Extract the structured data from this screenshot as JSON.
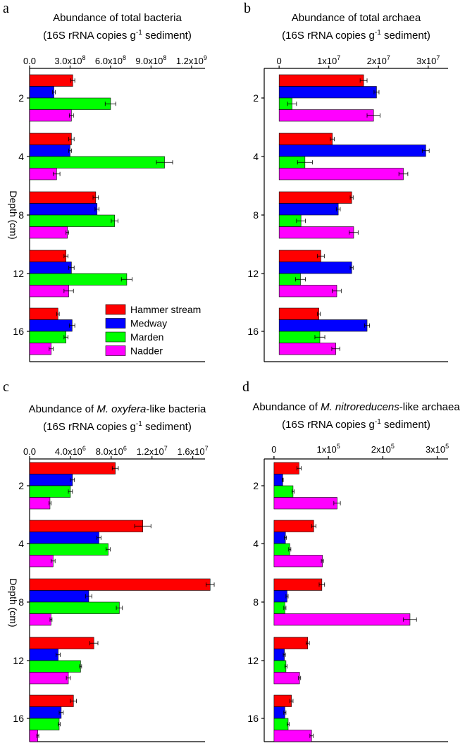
{
  "figure": {
    "depth_label": "Depth (cm)",
    "depths": [
      "2",
      "4",
      "8",
      "12",
      "16"
    ]
  },
  "legend": [
    {
      "label": "Hammer stream",
      "color": "#ff0000"
    },
    {
      "label": "Medway",
      "color": "#0000ff"
    },
    {
      "label": "Marden",
      "color": "#00ff00"
    },
    {
      "label": "Nadder",
      "color": "#ff00ff"
    }
  ],
  "chart_data": [
    {
      "panel": "a",
      "type": "bar",
      "orientation": "horizontal",
      "title_line1": "Abundance of total bacteria",
      "title_line2_pre": "(16S rRNA copies g",
      "title_line2_sup": "-1",
      "title_line2_post": " sediment)",
      "xlim": [
        0,
        1300000000
      ],
      "ticks": [
        {
          "value": 0,
          "mant": "0.0",
          "exp": ""
        },
        {
          "value": 300000000,
          "mant": "3.0x10",
          "exp": "8"
        },
        {
          "value": 600000000,
          "mant": "6.0x10",
          "exp": "8"
        },
        {
          "value": 900000000,
          "mant": "9.0x10",
          "exp": "8"
        },
        {
          "value": 1200000000,
          "mant": "1.2x10",
          "exp": "9"
        }
      ],
      "categories": [
        "2",
        "4",
        "8",
        "12",
        "16"
      ],
      "series": [
        {
          "name": "Hammer stream",
          "values": [
            320000000,
            310000000,
            490000000,
            270000000,
            210000000
          ],
          "errors": [
            15000000,
            20000000,
            20000000,
            15000000,
            10000000
          ]
        },
        {
          "name": "Medway",
          "values": [
            180000000,
            300000000,
            500000000,
            310000000,
            315000000
          ],
          "errors": [
            10000000,
            10000000,
            15000000,
            20000000,
            20000000
          ]
        },
        {
          "name": "Marden",
          "values": [
            600000000,
            1000000000,
            630000000,
            720000000,
            270000000
          ],
          "errors": [
            40000000,
            60000000,
            25000000,
            40000000,
            15000000
          ]
        },
        {
          "name": "Nadder",
          "values": [
            310000000,
            200000000,
            280000000,
            290000000,
            160000000
          ],
          "errors": [
            15000000,
            25000000,
            10000000,
            35000000,
            15000000
          ]
        }
      ]
    },
    {
      "panel": "b",
      "type": "bar",
      "orientation": "horizontal",
      "title_line1": "Abundance of total archaea",
      "title_line2_pre": "(16S rRNA copies g",
      "title_line2_sup": "-1",
      "title_line2_post": " sediment)",
      "xlim": [
        -3000000,
        34000000
      ],
      "ticks": [
        {
          "value": 0,
          "mant": "0",
          "exp": ""
        },
        {
          "value": 10000000,
          "mant": "1x10",
          "exp": "7"
        },
        {
          "value": 20000000,
          "mant": "2x10",
          "exp": "7"
        },
        {
          "value": 30000000,
          "mant": "3x10",
          "exp": "7"
        }
      ],
      "categories": [
        "2",
        "4",
        "8",
        "12",
        "16"
      ],
      "series": [
        {
          "name": "Hammer stream",
          "values": [
            17000000,
            10700000,
            14600000,
            8400000,
            8000000
          ],
          "errors": [
            700000,
            400000,
            300000,
            700000,
            300000
          ]
        },
        {
          "name": "Medway",
          "values": [
            19600000,
            29500000,
            11900000,
            14600000,
            17700000
          ],
          "errors": [
            500000,
            700000,
            400000,
            300000,
            500000
          ]
        },
        {
          "name": "Marden",
          "values": [
            2600000,
            5200000,
            4400000,
            4300000,
            8200000
          ],
          "errors": [
            900000,
            1500000,
            900000,
            1000000,
            1000000
          ]
        },
        {
          "name": "Nadder",
          "values": [
            19000000,
            25000000,
            15000000,
            11600000,
            11400000
          ],
          "errors": [
            1300000,
            900000,
            900000,
            900000,
            800000
          ]
        }
      ]
    },
    {
      "panel": "c",
      "type": "bar",
      "orientation": "horizontal",
      "title_pre": "Abundance of ",
      "title_italic": "M. oxyfera",
      "title_post": "-like bacteria",
      "title_line2_pre": "(16S rRNA copies g",
      "title_line2_sup": "-1",
      "title_line2_post": " sediment)",
      "xlim": [
        0,
        17200000
      ],
      "ticks": [
        {
          "value": 0,
          "mant": "0.0",
          "exp": ""
        },
        {
          "value": 4000000,
          "mant": "4.0x10",
          "exp": "6"
        },
        {
          "value": 8000000,
          "mant": "8.0x10",
          "exp": "6"
        },
        {
          "value": 12000000,
          "mant": "1.2x10",
          "exp": "7"
        },
        {
          "value": 16000000,
          "mant": "1.6x10",
          "exp": "7"
        }
      ],
      "categories": [
        "2",
        "4",
        "8",
        "12",
        "16"
      ],
      "series": [
        {
          "name": "Hammer stream",
          "values": [
            8400000,
            11100000,
            17700000,
            6300000,
            4300000
          ],
          "errors": [
            300000,
            800000,
            400000,
            400000,
            300000
          ]
        },
        {
          "name": "Medway",
          "values": [
            4200000,
            6800000,
            5800000,
            2800000,
            3100000
          ],
          "errors": [
            200000,
            200000,
            300000,
            200000,
            200000
          ]
        },
        {
          "name": "Marden",
          "values": [
            4000000,
            7700000,
            8800000,
            5000000,
            2900000
          ],
          "errors": [
            200000,
            200000,
            300000,
            100000,
            100000
          ]
        },
        {
          "name": "Nadder",
          "values": [
            2000000,
            2300000,
            2100000,
            3800000,
            800000
          ],
          "errors": [
            100000,
            200000,
            100000,
            200000,
            100000
          ]
        }
      ]
    },
    {
      "panel": "d",
      "type": "bar",
      "orientation": "horizontal",
      "title_pre": "Abundance of ",
      "title_italic": "M. nitroreducens",
      "title_post": "-like archaea",
      "title_line2_pre": "(16S rRNA copies g",
      "title_line2_sup": "-1",
      "title_line2_post": " sediment)",
      "xlim": [
        -18000,
        320000
      ],
      "ticks": [
        {
          "value": 0,
          "mant": "0",
          "exp": ""
        },
        {
          "value": 100000,
          "mant": "1x10",
          "exp": "5"
        },
        {
          "value": 200000,
          "mant": "2x10",
          "exp": "5"
        },
        {
          "value": 300000,
          "mant": "3x10",
          "exp": "5"
        }
      ],
      "categories": [
        "2",
        "4",
        "8",
        "12",
        "16"
      ],
      "series": [
        {
          "name": "Hammer stream",
          "values": [
            46000,
            73000,
            88000,
            62000,
            32000
          ],
          "errors": [
            4000,
            4000,
            5000,
            3000,
            3000
          ]
        },
        {
          "name": "Medway",
          "values": [
            16000,
            21000,
            24000,
            19000,
            20000
          ],
          "errors": [
            1000,
            2000,
            2000,
            2000,
            2000
          ]
        },
        {
          "name": "Marden",
          "values": [
            35000,
            29000,
            20000,
            22000,
            26000
          ],
          "errors": [
            2000,
            2000,
            2000,
            2000,
            2000
          ]
        },
        {
          "name": "Nadder",
          "values": [
            116000,
            89000,
            250000,
            47000,
            69000
          ],
          "errors": [
            6000,
            2000,
            12000,
            2000,
            3000
          ]
        }
      ]
    }
  ]
}
